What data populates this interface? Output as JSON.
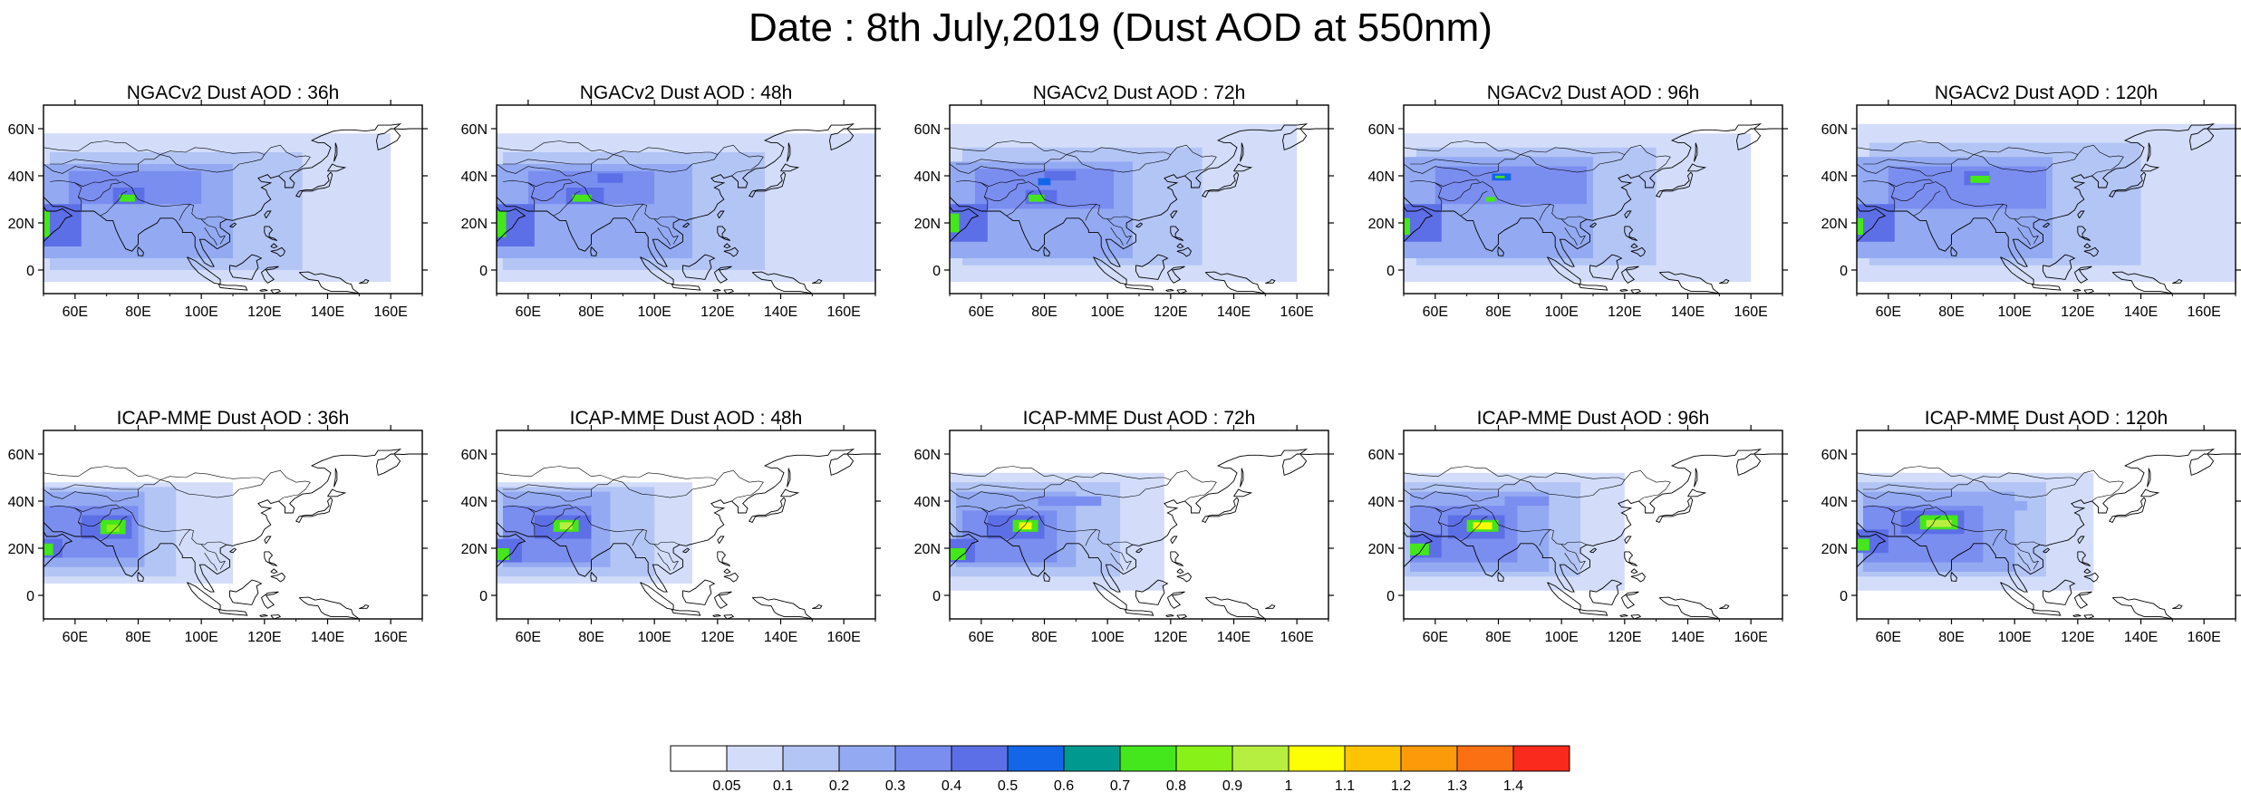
{
  "title": "Date : 8th July,2019 (Dust AOD at 550nm)",
  "panels": [
    {
      "label": "NGACv2 Dust AOD : 36h"
    },
    {
      "label": "NGACv2 Dust AOD : 48h"
    },
    {
      "label": "NGACv2 Dust AOD : 72h"
    },
    {
      "label": "NGACv2 Dust AOD : 96h"
    },
    {
      "label": "NGACv2 Dust AOD : 120h"
    },
    {
      "label": "ICAP-MME Dust AOD : 36h"
    },
    {
      "label": "ICAP-MME Dust AOD : 48h"
    },
    {
      "label": "ICAP-MME Dust AOD : 72h"
    },
    {
      "label": "ICAP-MME Dust AOD : 96h"
    },
    {
      "label": "ICAP-MME Dust AOD : 120h"
    }
  ],
  "map_extent": {
    "lon": [
      50,
      170
    ],
    "lat": [
      -10,
      70
    ]
  },
  "lon_ticks": [
    "60E",
    "80E",
    "100E",
    "120E",
    "140E",
    "160E"
  ],
  "lat_ticks": [
    "60N",
    "40N",
    "20N",
    "0"
  ],
  "colorbar": {
    "labels": [
      "0.05",
      "0.1",
      "0.2",
      "0.3",
      "0.4",
      "0.5",
      "0.6",
      "0.7",
      "0.8",
      "0.9",
      "1",
      "1.1",
      "1.2",
      "1.3",
      "1.4"
    ],
    "colors": [
      "#ffffff",
      "#d3ddfa",
      "#b3c5f5",
      "#93aaf2",
      "#7a8ef0",
      "#5d6fe6",
      "#1466e8",
      "#00998f",
      "#44e61c",
      "#88f218",
      "#b7ef40",
      "#fdfd04",
      "#fcc405",
      "#fc9a0a",
      "#fb7012",
      "#fa2a1c"
    ]
  }
}
